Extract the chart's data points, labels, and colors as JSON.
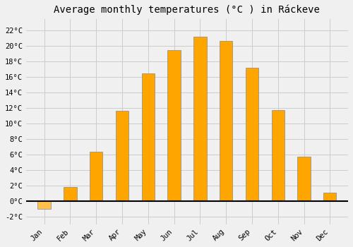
{
  "title": "Average monthly temperatures (°C ) in Ráckeve",
  "months": [
    "Jan",
    "Feb",
    "Mar",
    "Apr",
    "May",
    "Jun",
    "Jul",
    "Aug",
    "Sep",
    "Oct",
    "Nov",
    "Dec"
  ],
  "values": [
    -1.0,
    1.8,
    6.4,
    11.6,
    16.5,
    19.5,
    21.2,
    20.7,
    17.2,
    11.7,
    5.7,
    1.1
  ],
  "bar_color_positive": "#FFA500",
  "bar_color_negative": "#FFC04C",
  "bar_edge_color": "#888888",
  "background_color": "#f0f0f0",
  "plot_bg_color": "#f0f0f0",
  "grid_color": "#cccccc",
  "yticks": [
    -2,
    0,
    2,
    4,
    6,
    8,
    10,
    12,
    14,
    16,
    18,
    20,
    22
  ],
  "ylim": [
    -3.0,
    23.5
  ],
  "title_fontsize": 10,
  "tick_fontsize": 7.5,
  "zero_line_color": "#000000",
  "bar_width": 0.5,
  "figsize": [
    5.0,
    3.5
  ]
}
